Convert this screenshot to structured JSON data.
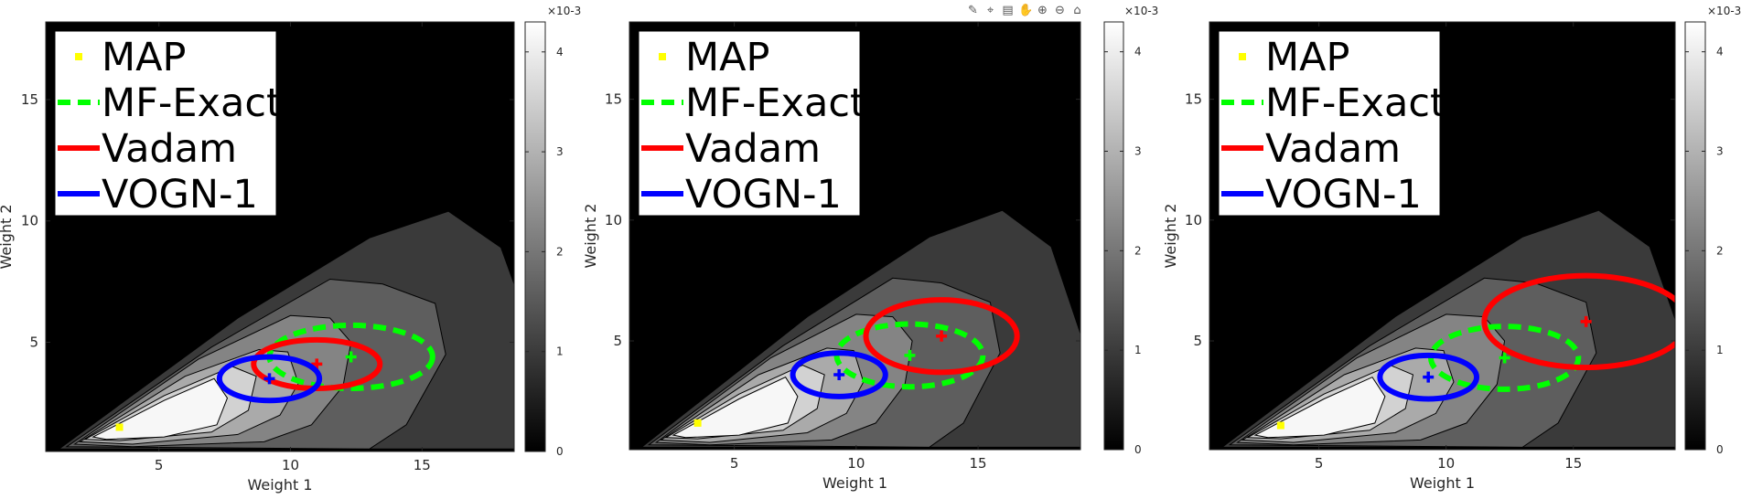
{
  "toolbar": {
    "icons": [
      "brush-icon",
      "datatip-icon",
      "export-icon",
      "pan-icon",
      "zoom-in-icon",
      "zoom-out-icon",
      "home-icon"
    ]
  },
  "colors": {
    "map": "#ffff00",
    "mf_exact": "#00ff00",
    "vadam": "#ff0000",
    "vogn": "#0000ff",
    "background": "#000000"
  },
  "legend": {
    "entries": [
      {
        "label": "MAP",
        "color": "#ffff00",
        "style": "marker"
      },
      {
        "label": "MF-Exact",
        "color": "#00ff00",
        "style": "dashed"
      },
      {
        "label": "Vadam",
        "color": "#ff0000",
        "style": "solid"
      },
      {
        "label": "VOGN-1",
        "color": "#0000ff",
        "style": "solid"
      }
    ]
  },
  "colorbar": {
    "exponent": "×10-3",
    "tick_labels": [
      "0",
      "1",
      "2",
      "3",
      "4"
    ],
    "range": [
      0,
      4.3
    ],
    "colormap": "gray"
  },
  "chart_data": [
    {
      "type": "contour",
      "xlabel": "Weight 1",
      "ylabel": "Weight 2",
      "xlim": [
        0.7,
        18.5
      ],
      "ylim": [
        0.5,
        18.2
      ],
      "xticks": [
        5,
        10,
        15
      ],
      "yticks": [
        5,
        10,
        15
      ],
      "tick_labels": {
        "x": [
          "5",
          "10",
          "15"
        ],
        "y": [
          "5",
          "10",
          "15"
        ]
      },
      "map_point": {
        "x": 3.5,
        "y": 1.5
      },
      "distributions": [
        {
          "name": "MF-Exact",
          "mean": [
            12.3,
            4.4
          ],
          "radius": [
            3.1,
            1.3
          ]
        },
        {
          "name": "Vadam",
          "mean": [
            11.0,
            4.1
          ],
          "radius": [
            2.4,
            1.0
          ]
        },
        {
          "name": "VOGN-1",
          "mean": [
            9.2,
            3.5
          ],
          "radius": [
            1.9,
            0.9
          ]
        }
      ]
    },
    {
      "type": "contour",
      "xlabel": "Weight 1",
      "ylabel": "Weight 2",
      "xlim": [
        0.7,
        19.2
      ],
      "ylim": [
        0.5,
        18.2
      ],
      "xticks": [
        5,
        10,
        15
      ],
      "yticks": [
        5,
        10,
        15
      ],
      "tick_labels": {
        "x": [
          "5",
          "10",
          "15"
        ],
        "y": [
          "5",
          "10",
          "15"
        ]
      },
      "map_point": {
        "x": 3.5,
        "y": 1.6
      },
      "distributions": [
        {
          "name": "MF-Exact",
          "mean": [
            12.2,
            4.4
          ],
          "radius": [
            3.0,
            1.3
          ]
        },
        {
          "name": "Vadam",
          "mean": [
            13.5,
            5.2
          ],
          "radius": [
            3.1,
            1.5
          ]
        },
        {
          "name": "VOGN-1",
          "mean": [
            9.3,
            3.6
          ],
          "radius": [
            1.9,
            0.9
          ]
        }
      ]
    },
    {
      "type": "contour",
      "xlabel": "Weight 1",
      "ylabel": "Weight 2",
      "xlim": [
        0.7,
        19.0
      ],
      "ylim": [
        0.5,
        18.2
      ],
      "xticks": [
        5,
        10,
        15
      ],
      "yticks": [
        5,
        10,
        15
      ],
      "tick_labels": {
        "x": [
          "5",
          "10",
          "15"
        ],
        "y": [
          "5",
          "10",
          "15"
        ]
      },
      "map_point": {
        "x": 3.5,
        "y": 1.5
      },
      "distributions": [
        {
          "name": "MF-Exact",
          "mean": [
            12.3,
            4.3
          ],
          "radius": [
            2.9,
            1.3
          ]
        },
        {
          "name": "Vadam",
          "mean": [
            15.5,
            5.8
          ],
          "radius": [
            4.0,
            1.9
          ]
        },
        {
          "name": "VOGN-1",
          "mean": [
            9.3,
            3.5
          ],
          "radius": [
            1.9,
            0.9
          ]
        }
      ]
    }
  ]
}
